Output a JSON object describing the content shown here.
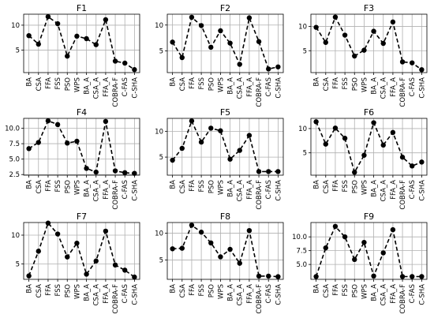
{
  "categories": [
    "BA",
    "CSA",
    "FFA",
    "FSS",
    "PSO",
    "WPS",
    "BA_A",
    "CSA_A",
    "FFA_A",
    "COBRA-F",
    "C-FAS",
    "C-SHA"
  ],
  "chart_data": [
    {
      "type": "line",
      "title": "F1",
      "yticks": [
        5,
        10
      ],
      "ytick_labels": [
        "5",
        "10"
      ],
      "ylim": [
        0.5,
        12.2
      ],
      "grid": true,
      "values": [
        7.9,
        6.2,
        11.7,
        10.3,
        3.8,
        7.8,
        7.3,
        6.1,
        11.1,
        2.8,
        2.4,
        1.1
      ]
    },
    {
      "type": "line",
      "title": "F2",
      "yticks": [
        5,
        10
      ],
      "ytick_labels": [
        "5",
        "10"
      ],
      "ylim": [
        0.8,
        12.1
      ],
      "grid": true,
      "values": [
        6.7,
        3.7,
        11.5,
        9.9,
        5.7,
        8.9,
        6.5,
        2.4,
        11.4,
        6.8,
        1.5,
        1.9
      ]
    },
    {
      "type": "line",
      "title": "F3",
      "yticks": [
        5,
        10
      ],
      "ytick_labels": [
        "5",
        "10"
      ],
      "ylim": [
        0.5,
        12.5
      ],
      "grid": true,
      "values": [
        9.8,
        6.7,
        11.9,
        8.2,
        3.9,
        5.1,
        9.0,
        6.5,
        10.9,
        2.7,
        2.5,
        1.1
      ]
    },
    {
      "type": "line",
      "title": "F4",
      "yticks": [
        2.5,
        5.0,
        7.5,
        10.0
      ],
      "ytick_labels": [
        "2.5",
        "5.0",
        "7.5",
        "10.0"
      ],
      "ylim": [
        2.4,
        11.6
      ],
      "grid": true,
      "values": [
        6.7,
        7.7,
        11.2,
        10.6,
        7.6,
        7.9,
        3.5,
        2.9,
        11.1,
        3.1,
        2.8,
        2.7
      ]
    },
    {
      "type": "line",
      "title": "F5",
      "yticks": [
        5,
        10
      ],
      "ytick_labels": [
        "5",
        "10"
      ],
      "ylim": [
        1.5,
        12.5
      ],
      "grid": true,
      "values": [
        4.4,
        6.7,
        12.0,
        7.9,
        10.6,
        10.1,
        4.6,
        6.3,
        9.2,
        2.2,
        2.2,
        2.2
      ]
    },
    {
      "type": "line",
      "title": "F6",
      "yticks": [
        5,
        10
      ],
      "ytick_labels": [
        "5",
        "10"
      ],
      "ylim": [
        0.4,
        12.1
      ],
      "grid": true,
      "values": [
        11.4,
        6.8,
        10.1,
        8.0,
        1.0,
        4.5,
        11.2,
        6.6,
        9.2,
        4.1,
        2.3,
        3.1
      ]
    },
    {
      "type": "line",
      "title": "F7",
      "yticks": [
        5,
        10
      ],
      "ytick_labels": [
        "5",
        "10"
      ],
      "ylim": [
        2.3,
        12.2
      ],
      "grid": true,
      "values": [
        2.9,
        7.2,
        12.1,
        10.2,
        6.2,
        8.6,
        3.2,
        5.5,
        10.7,
        4.8,
        3.9,
        2.7
      ]
    },
    {
      "type": "line",
      "title": "F8",
      "yticks": [
        5,
        10
      ],
      "ytick_labels": [
        "5",
        "10"
      ],
      "ylim": [
        1.4,
        12.0
      ],
      "grid": true,
      "values": [
        7.1,
        7.2,
        11.5,
        10.2,
        8.2,
        5.6,
        7.0,
        4.4,
        10.5,
        2.0,
        2.0,
        1.9
      ]
    },
    {
      "type": "line",
      "title": "F9",
      "yticks": [
        5.0,
        7.5,
        10.0
      ],
      "ytick_labels": [
        "5.0",
        "7.5",
        "10.0"
      ],
      "ylim": [
        2.3,
        12.6
      ],
      "grid": true,
      "values": [
        2.8,
        8.0,
        11.9,
        10.0,
        5.9,
        9.0,
        2.9,
        7.1,
        11.3,
        2.8,
        2.8,
        2.8
      ]
    }
  ]
}
